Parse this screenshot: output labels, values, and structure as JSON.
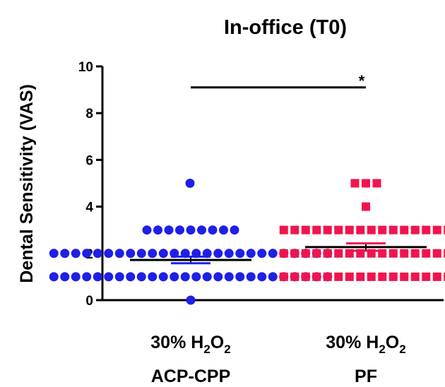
{
  "chart_data": {
    "type": "scatter",
    "title": "In-office (T0)",
    "ylabel": "Dental Sensitivity (VAS)",
    "xlabel": "",
    "ylim": [
      0,
      10
    ],
    "yticks": [
      "0",
      "2",
      "4",
      "6",
      "8",
      "10"
    ],
    "categories": [
      {
        "line1": "30% H",
        "sub1": "2",
        "mid": "O",
        "sub2": "2",
        "line2": "ACP-CPP"
      },
      {
        "line1": "30% H",
        "sub1": "2",
        "mid": "O",
        "sub2": "2",
        "line2": "PF"
      }
    ],
    "series": [
      {
        "group": 0,
        "marker": "circle",
        "color": "#1f1fe6",
        "values": [
          5,
          3,
          3,
          3,
          3,
          3,
          3,
          3,
          3,
          3,
          2,
          2,
          2,
          2,
          2,
          2,
          2,
          2,
          2,
          2,
          2,
          2,
          2,
          2,
          2,
          2,
          2,
          2,
          2,
          2,
          2,
          2,
          2,
          2,
          2,
          2,
          1,
          1,
          1,
          1,
          1,
          1,
          1,
          1,
          1,
          1,
          1,
          1,
          1,
          1,
          1,
          1,
          1,
          1,
          1,
          1,
          1,
          1,
          1,
          1,
          1,
          1,
          0
        ],
        "mean": 1.72,
        "sem": 0.14
      },
      {
        "group": 1,
        "marker": "square",
        "color": "#f0144e",
        "values": [
          5,
          5,
          5,
          4,
          3,
          3,
          3,
          3,
          3,
          3,
          3,
          3,
          3,
          3,
          3,
          3,
          3,
          3,
          3,
          3,
          2,
          2,
          2,
          2,
          2,
          2,
          2,
          2,
          2,
          2,
          2,
          2,
          2,
          2,
          2,
          2,
          1,
          1,
          1,
          1,
          1,
          1,
          1,
          1,
          1,
          1,
          1,
          1,
          1,
          1,
          1,
          1
        ],
        "mean": 2.27,
        "sem": 0.16
      }
    ],
    "significance": {
      "label": "*",
      "y": 9.1
    }
  }
}
